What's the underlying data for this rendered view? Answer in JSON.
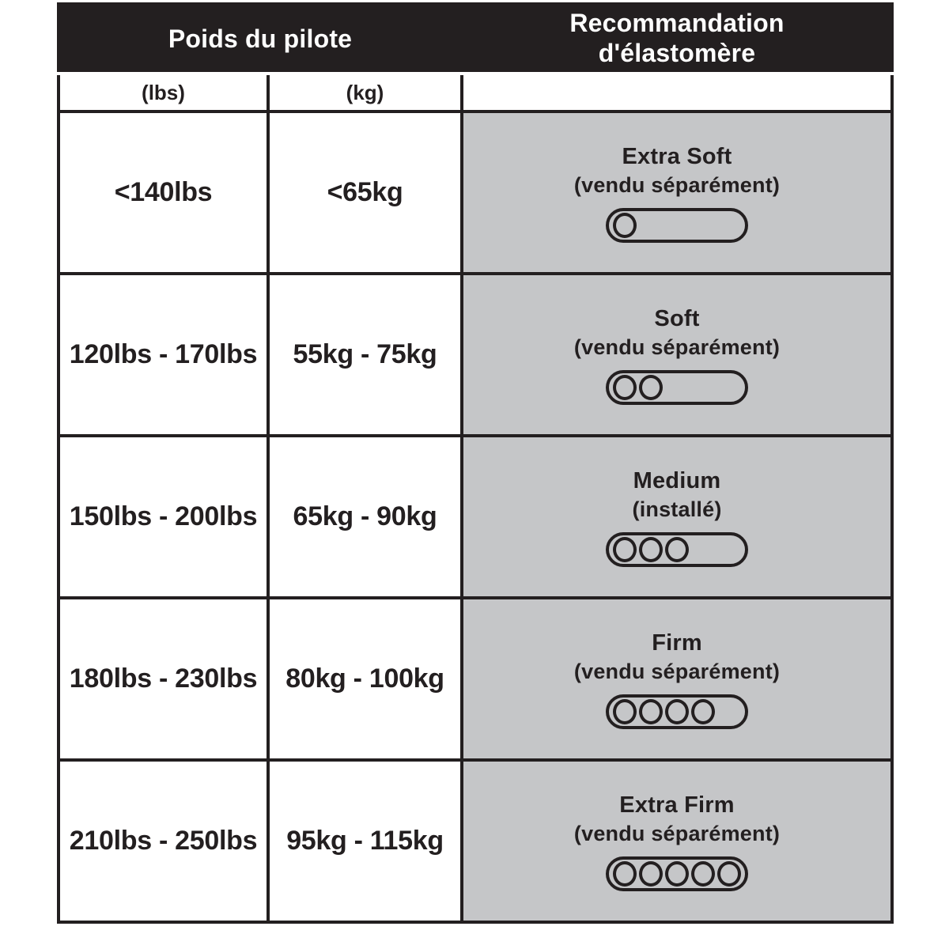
{
  "colors": {
    "header_bg": "#231f20",
    "border": "#231f20",
    "recommendation_cell_bg": "#c5c6c8",
    "header_text": "#ffffff",
    "body_text": "#231f20"
  },
  "table": {
    "header": {
      "pilot_weight": "Poids du pilote",
      "recommendation": "Recommandation d'élastomère"
    },
    "units": {
      "lbs": "(lbs)",
      "kg": "(kg)"
    },
    "rows": [
      {
        "lbs": "<140lbs",
        "kg": "<65kg",
        "name": "Extra Soft",
        "note": "(vendu séparément)",
        "dots": 1
      },
      {
        "lbs": "120lbs - 170lbs",
        "kg": "55kg - 75kg",
        "name": "Soft",
        "note": "(vendu séparément)",
        "dots": 2
      },
      {
        "lbs": "150lbs - 200lbs",
        "kg": "65kg - 90kg",
        "name": "Medium",
        "note": "(installé)",
        "dots": 3
      },
      {
        "lbs": "180lbs - 230lbs",
        "kg": "80kg - 100kg",
        "name": "Firm",
        "note": "(vendu séparément)",
        "dots": 4
      },
      {
        "lbs": "210lbs - 250lbs",
        "kg": "95kg - 115kg",
        "name": "Extra Firm",
        "note": "(vendu séparément)",
        "dots": 5
      }
    ]
  }
}
